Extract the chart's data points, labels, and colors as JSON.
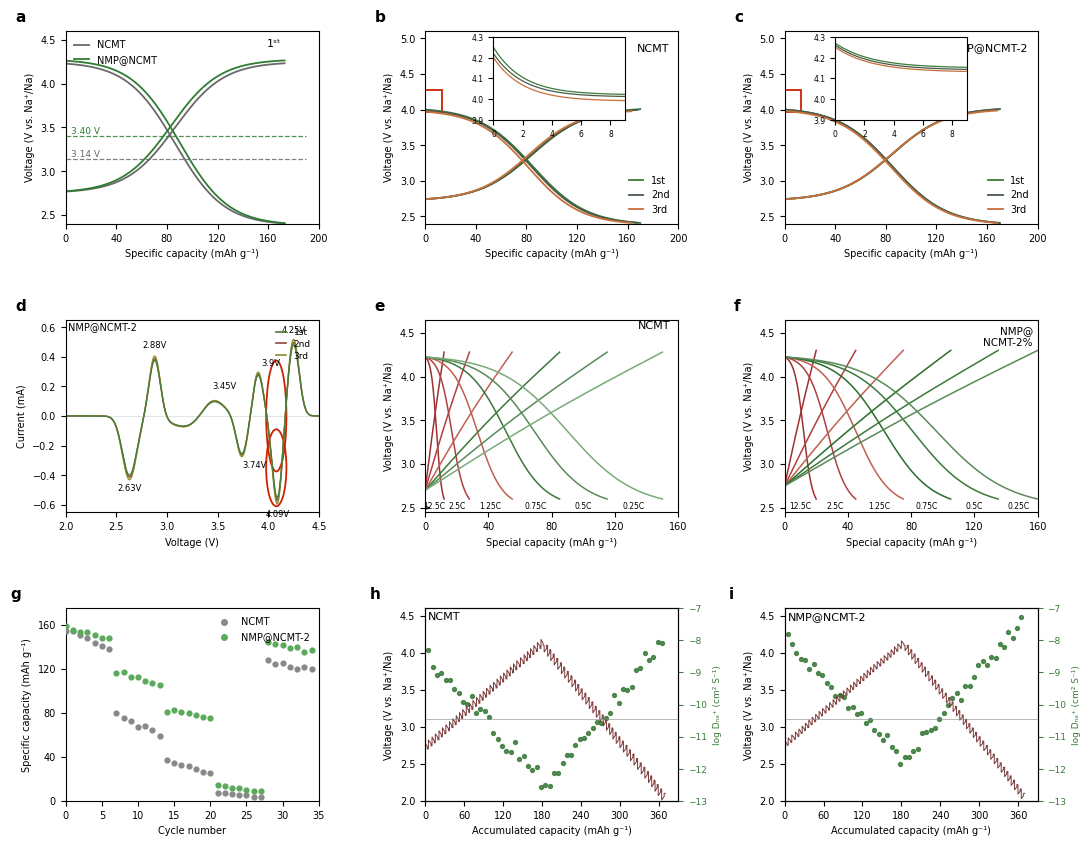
{
  "bg_color": "#ffffff",
  "colors": {
    "ncmt_dark": "#696969",
    "nmp_ncmt_green": "#2e7d32",
    "cycle1_green": "#3a7a3a",
    "cycle2_dark": "#4a5a4a",
    "cycle3_orange": "#c8703a",
    "cv_green": "#4a7a3a",
    "cv_brown": "#8b4a3a",
    "cv_olive": "#8b8b30",
    "rate_red1": "#a03030",
    "rate_red2": "#b04040",
    "rate_red3": "#c06050",
    "rate_red4": "#c87060",
    "rate_red5": "#d08070",
    "rate_red6": "#d09080",
    "rate_grn1": "#1a5c1a",
    "rate_grn2": "#2a6c2a",
    "rate_grn3": "#3a7a3a",
    "rate_grn4": "#5a8a5a",
    "rate_grn5": "#7aaa7a",
    "rate_grn6": "#9aba9a",
    "ncmt_g_gray": "#888888",
    "nmp_g_green": "#5aaa5a",
    "gitt_voltage": "#7a3535",
    "gitt_diff": "#3a7a3a"
  },
  "panel_a": {
    "legend": [
      "NCMT",
      "NMP@NCMT"
    ],
    "dashed_v1": 3.4,
    "dashed_v2": 3.14,
    "xlim": [
      0,
      200
    ],
    "ylim": [
      2.4,
      4.6
    ],
    "yticks": [
      2.5,
      3.0,
      3.5,
      4.0,
      4.5
    ],
    "xticks": [
      0,
      40,
      80,
      120,
      160,
      200
    ]
  },
  "panel_b": {
    "title": "NCMT",
    "legend": [
      "1st",
      "2nd",
      "3rd"
    ],
    "xlim": [
      0,
      200
    ],
    "ylim": [
      2.4,
      5.1
    ],
    "yticks": [
      2.5,
      3.0,
      3.5,
      4.0,
      4.5,
      5.0
    ],
    "xticks": [
      0,
      40,
      80,
      120,
      160,
      200
    ]
  },
  "panel_c": {
    "title": "NMP@NCMT-2",
    "legend": [
      "1st",
      "2nd",
      "3rd"
    ],
    "xlim": [
      0,
      200
    ],
    "ylim": [
      2.4,
      5.1
    ],
    "yticks": [
      2.5,
      3.0,
      3.5,
      4.0,
      4.5,
      5.0
    ],
    "xticks": [
      0,
      40,
      80,
      120,
      160,
      200
    ]
  },
  "panel_d": {
    "title": "NMP@NCMT-2",
    "labels": [
      "1st",
      "2nd",
      "3rd"
    ],
    "xlim": [
      2.0,
      4.5
    ],
    "ylim": [
      -0.65,
      0.65
    ],
    "yticks": [
      -0.6,
      -0.4,
      -0.2,
      0.0,
      0.2,
      0.4,
      0.6
    ],
    "xticks": [
      2.0,
      2.5,
      3.0,
      3.5,
      4.0,
      4.5
    ]
  },
  "panel_e": {
    "title": "NCMT",
    "rate_labels": [
      "12.5C",
      "2.5C",
      "1.25C",
      "0.75C",
      "0.5C",
      "0.25C"
    ],
    "rate_caps": [
      12,
      28,
      55,
      85,
      115,
      150
    ],
    "xlim": [
      0,
      160
    ],
    "ylim": [
      2.45,
      4.65
    ],
    "yticks": [
      2.5,
      3.0,
      3.5,
      4.0,
      4.5
    ],
    "xticks": [
      0,
      40,
      80,
      120,
      160
    ]
  },
  "panel_f": {
    "title": "NMP@\nNCMT-2%",
    "rate_labels": [
      "12.5C",
      "2.5C",
      "1.25C",
      "0.75C",
      "0.5C",
      "0.25C"
    ],
    "rate_caps": [
      20,
      45,
      75,
      105,
      135,
      160
    ],
    "xlim": [
      0,
      160
    ],
    "ylim": [
      2.45,
      4.65
    ],
    "yticks": [
      2.5,
      3.0,
      3.5,
      4.0,
      4.5
    ],
    "xticks": [
      0,
      40,
      80,
      120,
      160
    ]
  },
  "panel_g": {
    "legend": [
      "NCMT",
      "NMP@NCMT-2"
    ],
    "xlim": [
      0,
      35
    ],
    "ylim": [
      0,
      175
    ],
    "yticks": [
      0,
      40,
      80,
      120,
      160
    ],
    "xticks": [
      0,
      5,
      10,
      15,
      20,
      25,
      30,
      35
    ]
  },
  "panel_h": {
    "title": "NCMT",
    "xlim": [
      0,
      390
    ],
    "ylim_left": [
      2.0,
      4.6
    ],
    "ylim_right": [
      -13,
      -7
    ],
    "yticks_left": [
      2.0,
      2.5,
      3.0,
      3.5,
      4.0,
      4.5
    ],
    "yticks_right": [
      -13,
      -12,
      -11,
      -10,
      -9,
      -8,
      -7
    ],
    "xticks": [
      0,
      60,
      120,
      180,
      240,
      300,
      360
    ]
  },
  "panel_i": {
    "title": "NMP@NCMT-2",
    "xlim": [
      0,
      390
    ],
    "ylim_left": [
      2.0,
      4.6
    ],
    "ylim_right": [
      -13,
      -7
    ],
    "yticks_left": [
      2.0,
      2.5,
      3.0,
      3.5,
      4.0,
      4.5
    ],
    "yticks_right": [
      -13,
      -12,
      -11,
      -10,
      -9,
      -8,
      -7
    ],
    "xticks": [
      0,
      60,
      120,
      180,
      240,
      300,
      360
    ]
  }
}
